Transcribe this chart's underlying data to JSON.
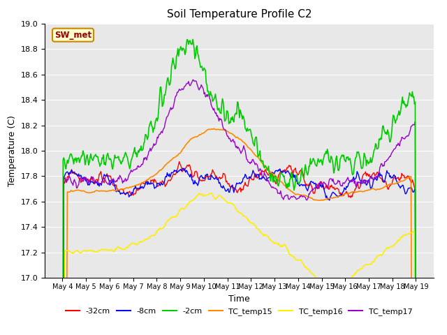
{
  "title": "Soil Temperature Profile C2",
  "xlabel": "Time",
  "ylabel": "Temperature (C)",
  "ylim": [
    17.0,
    19.0
  ],
  "yticks": [
    17.0,
    17.2,
    17.4,
    17.6,
    17.8,
    18.0,
    18.2,
    18.4,
    18.6,
    18.8,
    19.0
  ],
  "xtick_labels": [
    "May 4",
    "May 5",
    "May 6",
    "May 7",
    "May 8",
    "May 9",
    "May 10",
    "May 11",
    "May 12",
    "May 13",
    "May 14",
    "May 15",
    "May 16",
    "May 17",
    "May 18",
    "May 19"
  ],
  "series_colors": {
    "neg32cm": "#ff0000",
    "neg8cm": "#0000ff",
    "neg2cm": "#00cc00",
    "TC_temp15": "#ff8800",
    "TC_temp16": "#ffee00",
    "TC_temp17": "#9900cc"
  },
  "legend_labels": [
    "-32cm",
    "-8cm",
    "-2cm",
    "TC_temp15",
    "TC_temp16",
    "TC_temp17"
  ],
  "annotation_text": "SW_met",
  "annotation_color": "#990000",
  "annotation_bg": "#ffffcc",
  "annotation_border": "#cc8800",
  "background_color": "#e8e8e8",
  "n_points": 500
}
